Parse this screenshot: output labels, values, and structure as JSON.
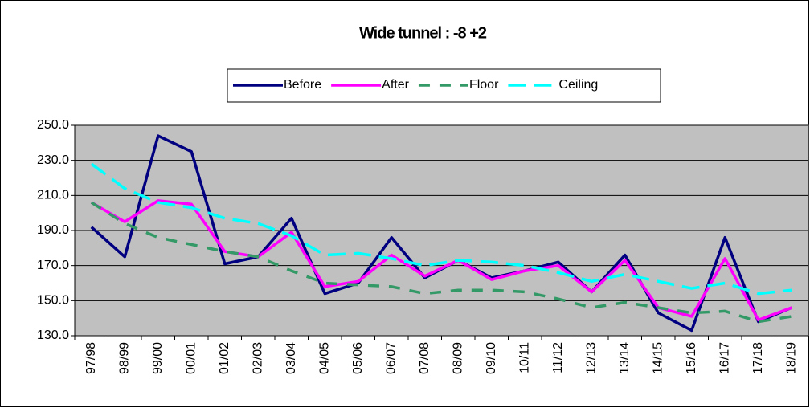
{
  "chart_data": {
    "type": "line",
    "title": "Wide tunnel : -8 +2",
    "categories": [
      "97/98",
      "98/99",
      "99/00",
      "00/01",
      "01/02",
      "02/03",
      "03/04",
      "04/05",
      "05/06",
      "06/07",
      "07/08",
      "08/09",
      "09/10",
      "10/11",
      "11/12",
      "12/13",
      "13/14",
      "14/15",
      "15/16",
      "16/17",
      "17/18",
      "18/19"
    ],
    "series": [
      {
        "name": "Before",
        "color": "#000080",
        "dash": "solid",
        "values": [
          192,
          175,
          244,
          235,
          171,
          175,
          197,
          154,
          160,
          186,
          163,
          173,
          163,
          167,
          172,
          155,
          176,
          143,
          133,
          186,
          138,
          146
        ]
      },
      {
        "name": "After",
        "color": "#ff00ff",
        "dash": "solid",
        "values": [
          206,
          195,
          207,
          205,
          178,
          175,
          189,
          158,
          161,
          176,
          164,
          173,
          162,
          167,
          170,
          155,
          173,
          146,
          141,
          174,
          139,
          146
        ]
      },
      {
        "name": "Floor",
        "color": "#339966",
        "dash": "dashed",
        "values": [
          206,
          194,
          186,
          182,
          178,
          175,
          167,
          160,
          159,
          158,
          154,
          156,
          156,
          155,
          151,
          146,
          149,
          146,
          143,
          144,
          138,
          141
        ]
      },
      {
        "name": "Ceiling",
        "color": "#00ffff",
        "dash": "dashed",
        "values": [
          228,
          214,
          206,
          203,
          197,
          194,
          187,
          176,
          177,
          174,
          170,
          173,
          172,
          170,
          166,
          161,
          165,
          161,
          157,
          160,
          154,
          156
        ]
      }
    ],
    "ylim": [
      130,
      250
    ],
    "yticks": [
      {
        "value": 130,
        "label": "130.0"
      },
      {
        "value": 150,
        "label": "150.0"
      },
      {
        "value": 170,
        "label": "170.0"
      },
      {
        "value": 190,
        "label": "190.0"
      },
      {
        "value": 210,
        "label": "210.0"
      },
      {
        "value": 230,
        "label": "230.0"
      },
      {
        "value": 250,
        "label": "250.0"
      }
    ],
    "grid": true,
    "legend": "top"
  }
}
